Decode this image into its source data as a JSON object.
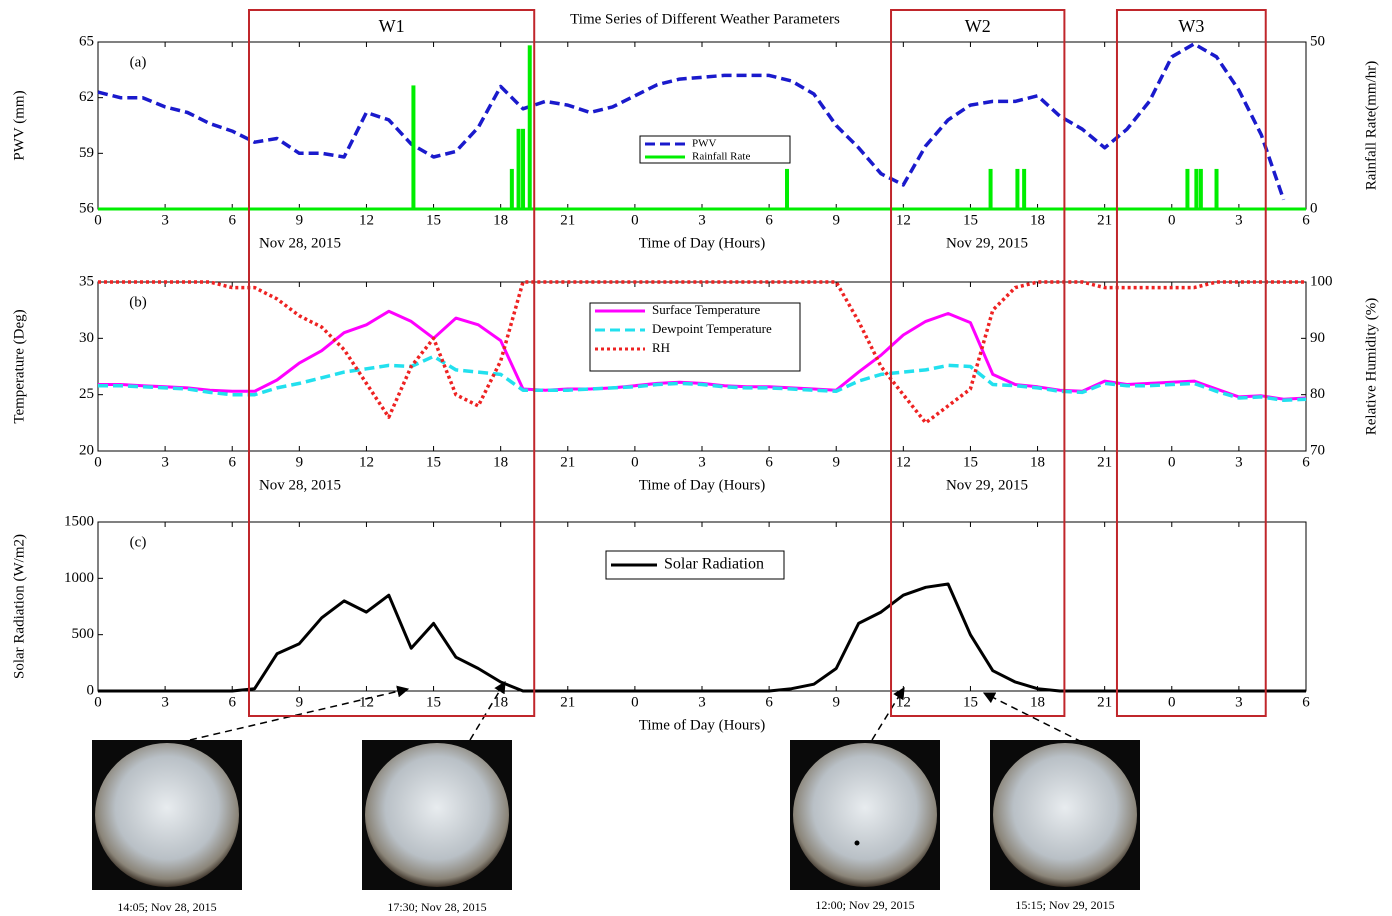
{
  "chart_data": [
    {
      "type": "line",
      "title": "Time Series of Different Weather Parameters",
      "panel_label": "(a)",
      "xlabel": "Time of Day (Hours)",
      "ylabel": "PWV (mm)",
      "y2label": "Rainfall Rate(mm/hr)",
      "dates": [
        "Nov 28, 2015",
        "Nov 29, 2015"
      ],
      "xlim": [
        0,
        54
      ],
      "xticks": [
        0,
        3,
        6,
        9,
        12,
        15,
        18,
        21,
        {
          "value": 24,
          "label": "0"
        },
        {
          "value": 27,
          "label": "3"
        },
        {
          "value": 30,
          "label": "6"
        },
        {
          "value": 33,
          "label": "9"
        },
        {
          "value": 36,
          "label": "12"
        },
        {
          "value": 39,
          "label": "15"
        },
        {
          "value": 42,
          "label": "18"
        },
        {
          "value": 45,
          "label": "21"
        },
        {
          "value": 48,
          "label": "0"
        },
        {
          "value": 51,
          "label": "3"
        },
        {
          "value": 54,
          "label": "6"
        }
      ],
      "ylim": [
        56,
        65
      ],
      "yticks": [
        56,
        59,
        62,
        65
      ],
      "y2lim": [
        0,
        50
      ],
      "y2ticks": [
        0,
        50
      ],
      "x": [
        0,
        1,
        2,
        3,
        4,
        5,
        6,
        7,
        8,
        9,
        10,
        11,
        12,
        13,
        14,
        15,
        16,
        17,
        18,
        19,
        20,
        21,
        22,
        23,
        24,
        25,
        26,
        27,
        28,
        29,
        30,
        31,
        32,
        33,
        34,
        35,
        36,
        37,
        38,
        39,
        40,
        41,
        42,
        43,
        44,
        45,
        46,
        47,
        48,
        49,
        50,
        51,
        52,
        53,
        54
      ],
      "series": [
        {
          "name": "PWV",
          "color": "#1a1acc",
          "style": "dashed",
          "values": [
            62.3,
            62.0,
            62.0,
            61.5,
            61.2,
            60.6,
            60.2,
            59.6,
            59.8,
            59.0,
            59.0,
            58.8,
            61.2,
            60.8,
            59.5,
            58.8,
            59.1,
            60.4,
            62.6,
            61.4,
            61.8,
            61.6,
            61.2,
            61.5,
            62.1,
            62.7,
            63.0,
            63.1,
            63.2,
            63.2,
            63.2,
            62.9,
            62.2,
            60.5,
            59.3,
            57.9,
            57.3,
            59.4,
            60.8,
            61.6,
            61.8,
            61.8,
            62.1,
            61.0,
            60.3,
            59.3,
            60.3,
            61.8,
            64.2,
            64.9,
            64.2,
            62.4,
            60.0,
            56.5,
            null
          ]
        },
        {
          "name": "Rainfall Rate",
          "color": "#00ee00",
          "style": "spike",
          "axis": "y2",
          "x": [
            14.1,
            18.5,
            18.8,
            19.0,
            19.3,
            30.8,
            39.9,
            41.1,
            41.4,
            48.7,
            49.1,
            49.3,
            50.0
          ],
          "values": [
            37,
            12,
            24,
            24,
            49,
            12,
            12,
            12,
            12,
            12,
            12,
            12,
            12
          ]
        }
      ]
    },
    {
      "type": "line",
      "panel_label": "(b)",
      "xlabel": "Time of Day (Hours)",
      "ylabel": "Temperature (Deg)",
      "y2label": "Relative Humidity (%)",
      "dates": [
        "Nov 28, 2015",
        "Nov 29, 2015"
      ],
      "xlim": [
        0,
        54
      ],
      "xticks": [
        0,
        3,
        6,
        9,
        12,
        15,
        18,
        21,
        {
          "value": 24,
          "label": "0"
        },
        {
          "value": 27,
          "label": "3"
        },
        {
          "value": 30,
          "label": "6"
        },
        {
          "value": 33,
          "label": "9"
        },
        {
          "value": 36,
          "label": "12"
        },
        {
          "value": 39,
          "label": "15"
        },
        {
          "value": 42,
          "label": "18"
        },
        {
          "value": 45,
          "label": "21"
        },
        {
          "value": 48,
          "label": "0"
        },
        {
          "value": 51,
          "label": "3"
        },
        {
          "value": 54,
          "label": "6"
        }
      ],
      "ylim": [
        20,
        35
      ],
      "yticks": [
        20,
        25,
        30,
        35
      ],
      "y2lim": [
        70,
        100
      ],
      "y2ticks": [
        70,
        80,
        90,
        100
      ],
      "x": [
        0,
        1,
        2,
        3,
        4,
        5,
        6,
        7,
        8,
        9,
        10,
        11,
        12,
        13,
        14,
        15,
        16,
        17,
        18,
        19,
        20,
        21,
        22,
        23,
        24,
        25,
        26,
        27,
        28,
        29,
        30,
        31,
        32,
        33,
        34,
        35,
        36,
        37,
        38,
        39,
        40,
        41,
        42,
        43,
        44,
        45,
        46,
        47,
        48,
        49,
        50,
        51,
        52,
        53,
        54
      ],
      "series": [
        {
          "name": "Surface Temperature",
          "color": "#ff00ff",
          "style": "solid",
          "values": [
            25.9,
            25.9,
            25.8,
            25.7,
            25.6,
            25.4,
            25.3,
            25.3,
            26.3,
            27.8,
            28.9,
            30.5,
            31.2,
            32.4,
            31.5,
            30.0,
            31.8,
            31.2,
            29.8,
            25.5,
            25.4,
            25.5,
            25.5,
            25.6,
            25.8,
            26.0,
            26.1,
            26.0,
            25.8,
            25.7,
            25.7,
            25.6,
            25.5,
            25.4,
            27.0,
            28.5,
            30.3,
            31.5,
            32.2,
            31.4,
            26.8,
            25.9,
            25.7,
            25.4,
            25.3,
            26.2,
            25.9,
            26.0,
            26.1,
            26.2,
            25.5,
            24.8,
            24.9,
            24.6,
            24.7
          ]
        },
        {
          "name": "Dewpoint Temperature",
          "color": "#22e0ee",
          "style": "dashed",
          "values": [
            25.8,
            25.8,
            25.7,
            25.6,
            25.5,
            25.2,
            25.0,
            25.0,
            25.6,
            26.0,
            26.5,
            27.0,
            27.3,
            27.6,
            27.5,
            28.4,
            27.2,
            27.0,
            26.8,
            25.4,
            25.4,
            25.4,
            25.5,
            25.6,
            25.7,
            25.9,
            26.0,
            25.9,
            25.7,
            25.6,
            25.6,
            25.5,
            25.4,
            25.3,
            26.2,
            26.8,
            27.0,
            27.2,
            27.6,
            27.5,
            25.9,
            25.8,
            25.6,
            25.3,
            25.2,
            26.0,
            25.8,
            25.8,
            25.9,
            26.0,
            25.3,
            24.7,
            24.8,
            24.5,
            24.6
          ]
        },
        {
          "name": "RH",
          "color": "#ee2222",
          "style": "dotted",
          "axis": "y2",
          "values": [
            100,
            100,
            100,
            100,
            100,
            100,
            99,
            99,
            97,
            94,
            92,
            88,
            82,
            76,
            85,
            90,
            80,
            78,
            86,
            100,
            100,
            100,
            100,
            100,
            100,
            100,
            100,
            100,
            100,
            100,
            100,
            100,
            100,
            100,
            93,
            85,
            80,
            75,
            78,
            81,
            95,
            99,
            100,
            100,
            100,
            99,
            99,
            99,
            99,
            99,
            100,
            100,
            100,
            100,
            100
          ]
        }
      ]
    },
    {
      "type": "line",
      "panel_label": "(c)",
      "xlabel": "Time of Day (Hours)",
      "ylabel": "Solar Radiation (W/m2)",
      "xlim": [
        0,
        54
      ],
      "xticks": [
        0,
        3,
        6,
        9,
        12,
        15,
        18,
        21,
        {
          "value": 24,
          "label": "0"
        },
        {
          "value": 27,
          "label": "3"
        },
        {
          "value": 30,
          "label": "6"
        },
        {
          "value": 33,
          "label": "9"
        },
        {
          "value": 36,
          "label": "12"
        },
        {
          "value": 39,
          "label": "15"
        },
        {
          "value": 42,
          "label": "18"
        },
        {
          "value": 45,
          "label": "21"
        },
        {
          "value": 48,
          "label": "0"
        },
        {
          "value": 51,
          "label": "3"
        },
        {
          "value": 54,
          "label": "6"
        }
      ],
      "ylim": [
        0,
        1500
      ],
      "yticks": [
        0,
        500,
        1000,
        1500
      ],
      "x": [
        0,
        1,
        2,
        3,
        4,
        5,
        6,
        7,
        8,
        9,
        10,
        11,
        12,
        13,
        14,
        15,
        16,
        17,
        18,
        19,
        20,
        21,
        22,
        23,
        24,
        25,
        26,
        27,
        28,
        29,
        30,
        31,
        32,
        33,
        34,
        35,
        36,
        37,
        38,
        39,
        40,
        41,
        42,
        43,
        44,
        45,
        46,
        47,
        48,
        49,
        50,
        51,
        52,
        53,
        54
      ],
      "series": [
        {
          "name": "Solar Radiation",
          "color": "#000000",
          "style": "solid",
          "values": [
            0,
            0,
            0,
            0,
            0,
            0,
            0,
            20,
            330,
            420,
            650,
            800,
            700,
            850,
            380,
            600,
            300,
            200,
            80,
            0,
            0,
            0,
            0,
            0,
            0,
            0,
            0,
            0,
            0,
            0,
            0,
            20,
            60,
            200,
            600,
            700,
            850,
            920,
            950,
            500,
            180,
            80,
            20,
            0,
            0,
            0,
            0,
            0,
            0,
            0,
            0,
            0,
            0,
            0,
            0
          ]
        }
      ]
    }
  ],
  "windows": [
    {
      "label": "W1",
      "start": 6.75,
      "end": 19.5
    },
    {
      "label": "W2",
      "start": 35.45,
      "end": 43.2
    },
    {
      "label": "W3",
      "start": 45.55,
      "end": 52.2
    }
  ],
  "sky_images": [
    {
      "caption": "14:05; Nov 28, 2015"
    },
    {
      "caption": "17:30; Nov 28, 2015"
    },
    {
      "caption": "12:00; Nov 29, 2015"
    },
    {
      "caption": "15:15; Nov 29, 2015"
    }
  ]
}
